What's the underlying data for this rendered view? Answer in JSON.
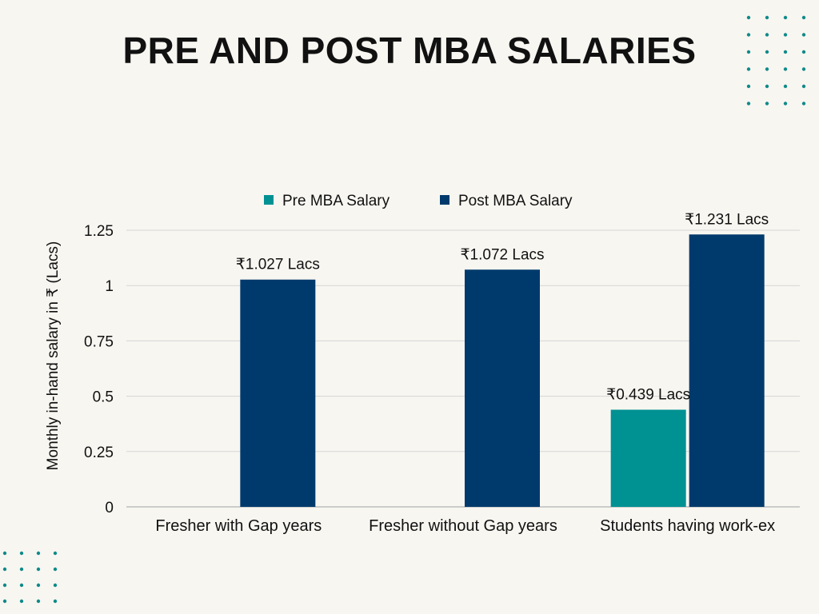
{
  "chart_data": {
    "type": "bar",
    "title": "PRE AND POST MBA SALARIES",
    "ylabel": "Monthly in-hand salary in ₹ (Lacs)",
    "xlabel": "",
    "categories": [
      "Fresher with Gap years",
      "Fresher without Gap years",
      "Students having work-ex"
    ],
    "series": [
      {
        "name": "Pre MBA Salary",
        "color": "#009193",
        "values": [
          null,
          null,
          0.439
        ],
        "labels": [
          "",
          "",
          "₹0.439 Lacs"
        ]
      },
      {
        "name": "Post MBA Salary",
        "color": "#003a6c",
        "values": [
          1.027,
          1.072,
          1.231
        ],
        "labels": [
          "₹1.027 Lacs",
          "₹1.072 Lacs",
          "₹1.231 Lacs"
        ]
      }
    ],
    "ylim": [
      0,
      1.25
    ],
    "yticks": [
      0,
      0.25,
      0.5,
      0.75,
      1,
      1.25
    ],
    "ytick_labels": [
      "0",
      "0.25",
      "0.5",
      "0.75",
      "1",
      "1.25"
    ],
    "grid": true,
    "legend_position": "top-center"
  },
  "colors": {
    "background": "#f8f6f1",
    "dot_accent": "#0f8a8a",
    "gridline": "#d6d6d6",
    "axis": "#bdbdbd",
    "text": "#111111"
  }
}
